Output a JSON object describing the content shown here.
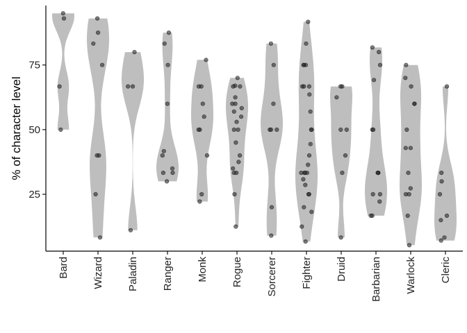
{
  "chart_data": {
    "type": "violin",
    "title": "",
    "xlabel": "",
    "ylabel": "% of character level",
    "ylim": [
      3,
      98
    ],
    "yticks": [
      25,
      50,
      75
    ],
    "grid": false,
    "legend": "none",
    "violin_color": "#bebebe",
    "point_color": "#2b2b2b",
    "categories": [
      "Bard",
      "Wizard",
      "Paladin",
      "Ranger",
      "Monk",
      "Rogue",
      "Sorcerer",
      "Fighter",
      "Druid",
      "Barbarian",
      "Warlock",
      "Cleric"
    ],
    "series": [
      {
        "category": "Bard",
        "points": [
          95,
          93,
          66.7,
          50
        ]
      },
      {
        "category": "Wizard",
        "points": [
          93,
          87.5,
          83.3,
          75,
          40,
          40,
          25,
          8.3
        ]
      },
      {
        "category": "Paladin",
        "points": [
          80,
          66.7,
          66.7,
          11.1
        ]
      },
      {
        "category": "Ranger",
        "points": [
          87.5,
          83.3,
          75,
          60,
          41.7,
          40,
          35,
          33.3,
          33.3,
          30
        ]
      },
      {
        "category": "Monk",
        "points": [
          77,
          66.7,
          66.7,
          60,
          55,
          50,
          50,
          40,
          25,
          22.2
        ]
      },
      {
        "category": "Rogue",
        "points": [
          70,
          67,
          66.7,
          66.7,
          62.5,
          60,
          60,
          58.3,
          57,
          55,
          53,
          50,
          50,
          45,
          40,
          37.5,
          35,
          33.3,
          33.3,
          25,
          12.5
        ]
      },
      {
        "category": "Sorcerer",
        "points": [
          83.3,
          75,
          60,
          50,
          50,
          50,
          20,
          9
        ]
      },
      {
        "category": "Fighter",
        "points": [
          91.7,
          83.3,
          75,
          75,
          75,
          66.7,
          66.7,
          66.7,
          63.6,
          57,
          50,
          50,
          44.4,
          40,
          36.4,
          33.3,
          33.3,
          33.3,
          33.3,
          30.8,
          28.6,
          25,
          25,
          20,
          18.2,
          12.5,
          6.7
        ]
      },
      {
        "category": "Druid",
        "points": [
          66.7,
          66.7,
          62.5,
          50,
          50,
          40,
          33.3,
          8.3
        ]
      },
      {
        "category": "Barbarian",
        "points": [
          81.8,
          80,
          75,
          69.2,
          50,
          50,
          33.3,
          33.3,
          33.3,
          25,
          25,
          22.2,
          16.7,
          16.7
        ]
      },
      {
        "category": "Warlock",
        "points": [
          75,
          70,
          66.7,
          60,
          60,
          50,
          42.9,
          42.9,
          33.3,
          27.3,
          25,
          25,
          16.7,
          5.3
        ]
      },
      {
        "category": "Cleric",
        "points": [
          66.7,
          33.3,
          30,
          25,
          16.7,
          15,
          8.3,
          7.1
        ]
      }
    ]
  }
}
